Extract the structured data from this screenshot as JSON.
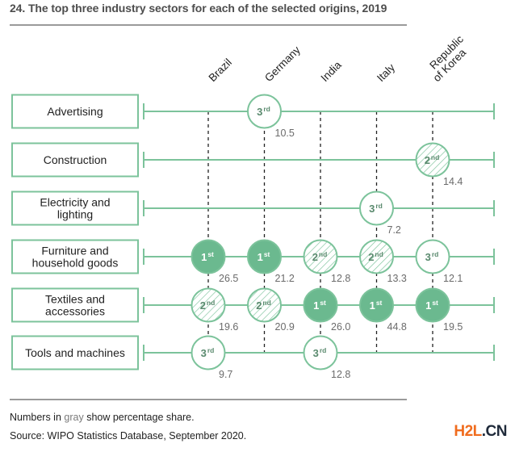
{
  "title": "24. The top three industry sectors for each of the selected origins, 2019",
  "footnote": {
    "prefix": "Numbers in ",
    "highlight": "gray",
    "suffix": " show percentage share."
  },
  "source": "Source: WIPO Statistics Database, September 2020.",
  "watermark": {
    "part_a": "H2L",
    "part_b": ".CN"
  },
  "colors": {
    "green": "#6bb98f",
    "green_line": "#7cc39b",
    "rank_text_dark": "#5a8a6e",
    "value_gray": "#6b6b6b",
    "rule_gray": "#9a9a9a"
  },
  "chart_data": {
    "type": "table",
    "title": "24. The top three industry sectors for each of the selected origins, 2019",
    "columns": [
      {
        "name": "Brazil",
        "lines": [
          "Brazil"
        ]
      },
      {
        "name": "Germany",
        "lines": [
          "Germany"
        ]
      },
      {
        "name": "India",
        "lines": [
          "India"
        ]
      },
      {
        "name": "Italy",
        "lines": [
          "Italy"
        ]
      },
      {
        "name": "Republic of Korea",
        "lines": [
          "Republic",
          "of Korea"
        ]
      }
    ],
    "rows": [
      {
        "name": "Advertising",
        "lines": [
          "Advertising"
        ]
      },
      {
        "name": "Construction",
        "lines": [
          "Construction"
        ]
      },
      {
        "name": "Electricity and lighting",
        "lines": [
          "Electricity and",
          "lighting"
        ]
      },
      {
        "name": "Furniture and household goods",
        "lines": [
          "Furniture and",
          "household goods"
        ]
      },
      {
        "name": "Textiles and accessories",
        "lines": [
          "Textiles and",
          "accessories"
        ]
      },
      {
        "name": "Tools and machines",
        "lines": [
          "Tools and machines"
        ]
      }
    ],
    "rank_styles": {
      "1": {
        "label": "1",
        "suffix": "st",
        "style": "filled"
      },
      "2": {
        "label": "2",
        "suffix": "nd",
        "style": "hatched"
      },
      "3": {
        "label": "3",
        "suffix": "rd",
        "style": "outline"
      }
    },
    "entries": [
      {
        "row": "Advertising",
        "column": "Germany",
        "rank": 3,
        "share": "10.5"
      },
      {
        "row": "Construction",
        "column": "Republic of Korea",
        "rank": 2,
        "share": "14.4"
      },
      {
        "row": "Electricity and lighting",
        "column": "Italy",
        "rank": 3,
        "share": "7.2"
      },
      {
        "row": "Furniture and household goods",
        "column": "Brazil",
        "rank": 1,
        "share": "26.5"
      },
      {
        "row": "Furniture and household goods",
        "column": "Germany",
        "rank": 1,
        "share": "21.2"
      },
      {
        "row": "Furniture and household goods",
        "column": "India",
        "rank": 2,
        "share": "12.8"
      },
      {
        "row": "Furniture and household goods",
        "column": "Italy",
        "rank": 2,
        "share": "13.3"
      },
      {
        "row": "Furniture and household goods",
        "column": "Republic of Korea",
        "rank": 3,
        "share": "12.1"
      },
      {
        "row": "Textiles and accessories",
        "column": "Brazil",
        "rank": 2,
        "share": "19.6"
      },
      {
        "row": "Textiles and accessories",
        "column": "Germany",
        "rank": 2,
        "share": "20.9"
      },
      {
        "row": "Textiles and accessories",
        "column": "India",
        "rank": 1,
        "share": "26.0"
      },
      {
        "row": "Textiles and accessories",
        "column": "Italy",
        "rank": 1,
        "share": "44.8"
      },
      {
        "row": "Textiles and accessories",
        "column": "Republic of Korea",
        "rank": 1,
        "share": "19.5"
      },
      {
        "row": "Tools and machines",
        "column": "Brazil",
        "rank": 3,
        "share": "9.7"
      },
      {
        "row": "Tools and machines",
        "column": "India",
        "rank": 3,
        "share": "12.8"
      }
    ],
    "value_unit": "percentage share"
  }
}
